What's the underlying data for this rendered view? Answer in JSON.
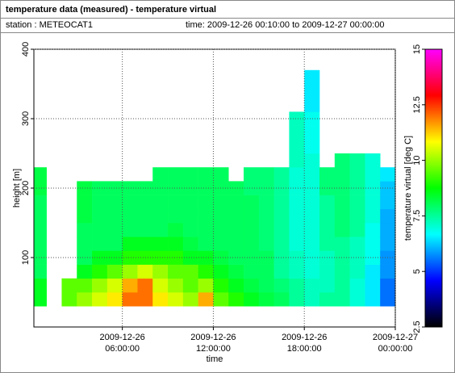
{
  "chart_data": {
    "type": "heatmap",
    "title": "temperature data (measured) - temperature virtual",
    "station": "station : METEOCAT1",
    "period": "time: 2009-12-26 00:10:00 to 2009-12-27 00:00:00",
    "xlabel": "time",
    "ylabel": "height [m]",
    "zlabel": "temperature virtual [deg C]",
    "x": [
      0.5,
      1.5,
      2.5,
      3.5,
      4.5,
      5.5,
      6.5,
      7.5,
      8.5,
      9.5,
      10.5,
      11.5,
      12.5,
      13.5,
      14.5,
      15.5,
      16.5,
      17.5,
      18.5,
      19.5,
      20.5,
      21.5,
      22.5,
      23.5
    ],
    "y": [
      40,
      60,
      80,
      100,
      120,
      140,
      160,
      180,
      200,
      220,
      240,
      260,
      280,
      300,
      320,
      340,
      360
    ],
    "values": [
      [
        8.5,
        8.5,
        8,
        8,
        8,
        8,
        8,
        8,
        8.2,
        8.2,
        null,
        null,
        null,
        null,
        null,
        null,
        null
      ],
      [
        null,
        null,
        null,
        null,
        null,
        null,
        null,
        null,
        null,
        null,
        null,
        null,
        null,
        null,
        null,
        null,
        null
      ],
      [
        9.5,
        9.5,
        null,
        null,
        null,
        null,
        null,
        null,
        null,
        null,
        null,
        null,
        null,
        null,
        null,
        null,
        null
      ],
      [
        10,
        9.5,
        8.5,
        8,
        8,
        8,
        8.2,
        8.2,
        8.2,
        null,
        null,
        null,
        null,
        null,
        null,
        null,
        null
      ],
      [
        10.5,
        10,
        9,
        8.5,
        8,
        8,
        8,
        8,
        8,
        null,
        null,
        null,
        null,
        null,
        null,
        null,
        null
      ],
      [
        11,
        10.5,
        9.5,
        8.5,
        8,
        8,
        8,
        8,
        8,
        null,
        null,
        null,
        null,
        null,
        null,
        null,
        null
      ],
      [
        12,
        11.5,
        10,
        9,
        8.5,
        8,
        8,
        8,
        8,
        null,
        null,
        null,
        null,
        null,
        null,
        null,
        null
      ],
      [
        12,
        12,
        10.5,
        9,
        8.5,
        8,
        8,
        8,
        8,
        null,
        null,
        null,
        null,
        null,
        null,
        null,
        null
      ],
      [
        11,
        10.5,
        10,
        9,
        8.5,
        8,
        8,
        8,
        8,
        8,
        null,
        null,
        null,
        null,
        null,
        null,
        null
      ],
      [
        10.5,
        10,
        9.5,
        9,
        8.5,
        8.2,
        8,
        8,
        8,
        8,
        null,
        null,
        null,
        null,
        null,
        null,
        null
      ],
      [
        10,
        9.5,
        9.5,
        8.5,
        8.2,
        8,
        8,
        8,
        8,
        8,
        null,
        null,
        null,
        null,
        null,
        null,
        null
      ],
      [
        11.5,
        10,
        9,
        8.5,
        8,
        8,
        8,
        8,
        8,
        8,
        null,
        null,
        null,
        null,
        null,
        null,
        null
      ],
      [
        9.5,
        9,
        8.5,
        8.2,
        8,
        8,
        8,
        8,
        8,
        8,
        null,
        null,
        null,
        null,
        null,
        null,
        null
      ],
      [
        9,
        8.5,
        8.2,
        8,
        8,
        8,
        8,
        8,
        8,
        null,
        null,
        null,
        null,
        null,
        null,
        null,
        null
      ],
      [
        8.5,
        8.2,
        8,
        8,
        8,
        8,
        8,
        8,
        7.8,
        7.8,
        null,
        null,
        null,
        null,
        null,
        null,
        null
      ],
      [
        8.2,
        8,
        8,
        8,
        7.8,
        7.8,
        7.8,
        7.8,
        7.8,
        7.8,
        null,
        null,
        null,
        null,
        null,
        null,
        null
      ],
      [
        8,
        7.8,
        7.5,
        7.5,
        7.5,
        7.5,
        7.5,
        7.5,
        7.5,
        7.5,
        null,
        null,
        null,
        null,
        null,
        null,
        null
      ],
      [
        7.5,
        7.5,
        7.2,
        7.2,
        7,
        7,
        7,
        7,
        7,
        7,
        7.2,
        7.2,
        7.2,
        7.2,
        null,
        null,
        null
      ],
      [
        7.2,
        7.2,
        7,
        7,
        7,
        7,
        7,
        7,
        7,
        7,
        7,
        6.8,
        6.8,
        6.8,
        6.5,
        6.5,
        6.5
      ],
      [
        7.5,
        7.2,
        7.2,
        7.2,
        7.5,
        7.5,
        7.5,
        7.5,
        7.8,
        7.8,
        null,
        null,
        null,
        null,
        null,
        null,
        null
      ],
      [
        7.5,
        7.5,
        7.5,
        7.5,
        7.5,
        7.8,
        7.8,
        7.8,
        7.8,
        7.8,
        7.8,
        null,
        null,
        null,
        null,
        null,
        null
      ],
      [
        7,
        7,
        7.2,
        7.2,
        7.2,
        7.5,
        7.5,
        7.5,
        7.5,
        7.5,
        7.5,
        null,
        null,
        null,
        null,
        null,
        null
      ],
      [
        6.5,
        6.5,
        6.5,
        6.8,
        6.8,
        6.8,
        7,
        7,
        7,
        7,
        7,
        null,
        null,
        null,
        null,
        null,
        null
      ],
      [
        5.5,
        5.5,
        5.8,
        5.8,
        6,
        6,
        6,
        6.2,
        6.2,
        6.5,
        null,
        null,
        null,
        null,
        null,
        null,
        null
      ]
    ],
    "xlim": [
      0.167,
      24
    ],
    "xticks": [
      {
        "value": 6,
        "label": "2009-12-26 06:00:00"
      },
      {
        "value": 12,
        "label": "2009-12-26 12:00:00"
      },
      {
        "value": 18,
        "label": "2009-12-26 18:00:00"
      },
      {
        "value": 24,
        "label": "2009-12-27 00:00:00"
      }
    ],
    "ylim": [
      0,
      400
    ],
    "yticks": [
      100,
      200,
      300,
      400
    ],
    "zlim": [
      2.5,
      15
    ],
    "zticks": [
      2.5,
      5,
      7.5,
      10,
      12.5,
      15
    ],
    "colormap": [
      "#000000",
      "#0000ff",
      "#00ffff",
      "#00ff00",
      "#ffff00",
      "#ff0000",
      "#ff00ff"
    ],
    "grid": true
  }
}
